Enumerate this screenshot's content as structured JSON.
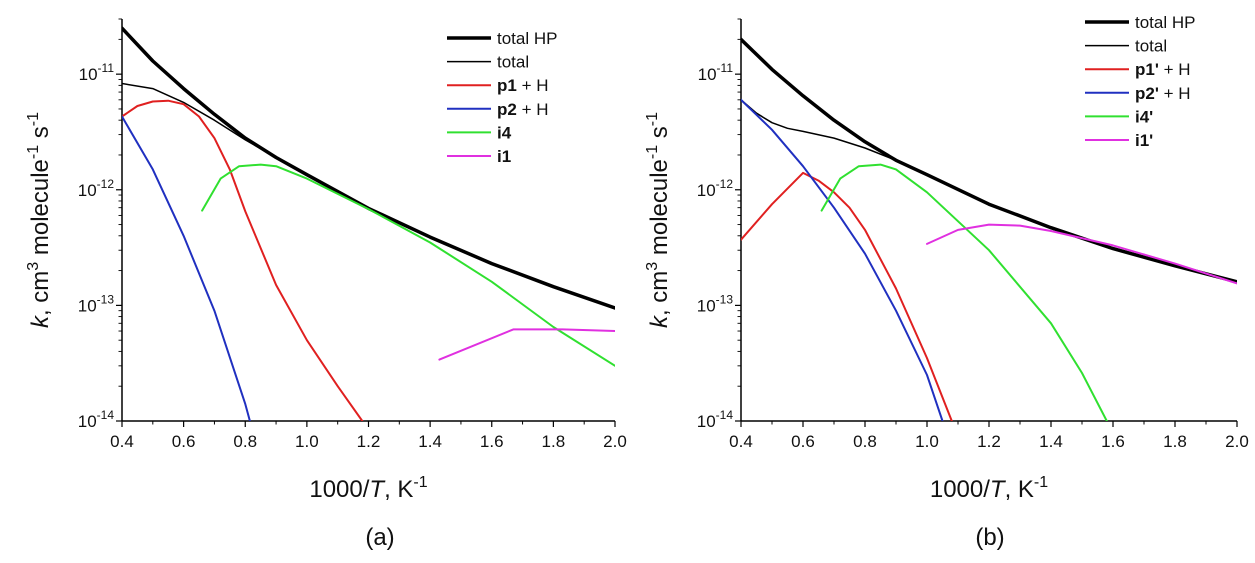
{
  "chart_data": [
    {
      "type": "line",
      "panel_label": "(a)",
      "xlabel": "1000/T, K-1",
      "ylabel": "k, cm3 molecule-1 s-1",
      "xlim": [
        0.4,
        2.0
      ],
      "ylim": [
        1e-14,
        3e-11
      ],
      "yscale": "log",
      "x_ticks": [
        "0.4",
        "0.6",
        "0.8",
        "1.0",
        "1.2",
        "1.4",
        "1.6",
        "1.8",
        "2.0"
      ],
      "y_ticks": [
        {
          "base": "10",
          "exp": "-11"
        },
        {
          "base": "10",
          "exp": "-12"
        },
        {
          "base": "10",
          "exp": "-13"
        },
        {
          "base": "10",
          "exp": "-14"
        }
      ],
      "legend_position": "top-right",
      "series": [
        {
          "name": "total HP",
          "color": "#000000",
          "width": 3.5,
          "x": [
            0.4,
            0.5,
            0.6,
            0.7,
            0.8,
            0.9,
            1.0,
            1.2,
            1.4,
            1.6,
            1.8,
            2.0
          ],
          "y": [
            2.5e-11,
            1.3e-11,
            7.5e-12,
            4.5e-12,
            2.8e-12,
            1.9e-12,
            1.35e-12,
            6.9e-13,
            3.9e-13,
            2.3e-13,
            1.45e-13,
            9.5e-14
          ]
        },
        {
          "name": "total",
          "color": "#000000",
          "width": 1.5,
          "x": [
            0.4,
            0.5,
            0.6,
            0.7,
            0.8,
            0.9,
            1.0,
            1.2
          ],
          "y": [
            8.3e-12,
            7.5e-12,
            5.7e-12,
            4e-12,
            2.7e-12,
            1.9e-12,
            1.35e-12,
            6.9e-13
          ]
        },
        {
          "name": "p1 + H",
          "color": "#e02020",
          "width": 2,
          "x": [
            0.4,
            0.45,
            0.5,
            0.55,
            0.6,
            0.65,
            0.7,
            0.75,
            0.8,
            0.9,
            1.0,
            1.1,
            1.18
          ],
          "y": [
            4.3e-12,
            5.3e-12,
            5.8e-12,
            5.9e-12,
            5.5e-12,
            4.3e-12,
            2.8e-12,
            1.5e-12,
            6.5e-13,
            1.5e-13,
            5e-14,
            2e-14,
            1e-14
          ]
        },
        {
          "name": "p2 + H",
          "color": "#2030c0",
          "width": 2,
          "x": [
            0.4,
            0.5,
            0.6,
            0.7,
            0.8,
            0.815
          ],
          "y": [
            4.3e-12,
            1.5e-12,
            4e-13,
            9e-14,
            1.4e-14,
            1e-14
          ]
        },
        {
          "name": "i4",
          "color": "#30e030",
          "width": 2,
          "x": [
            0.66,
            0.72,
            0.78,
            0.85,
            0.9,
            1.0,
            1.2,
            1.4,
            1.6,
            1.8,
            2.0
          ],
          "y": [
            6.6e-13,
            1.25e-12,
            1.6e-12,
            1.65e-12,
            1.6e-12,
            1.25e-12,
            6.8e-13,
            3.5e-13,
            1.6e-13,
            6.5e-14,
            3e-14
          ]
        },
        {
          "name": "i1",
          "color": "#e030e0",
          "width": 2,
          "x": [
            1.43,
            1.67,
            1.83,
            2.0
          ],
          "y": [
            3.4e-14,
            6.2e-14,
            6.2e-14,
            6e-14
          ]
        }
      ]
    },
    {
      "type": "line",
      "panel_label": "(b)",
      "xlabel": "1000/T, K-1",
      "ylabel": "k, cm3 molecule-1 s-1",
      "xlim": [
        0.4,
        2.0
      ],
      "ylim": [
        1e-14,
        3e-11
      ],
      "yscale": "log",
      "x_ticks": [
        "0.4",
        "0.6",
        "0.8",
        "1.0",
        "1.2",
        "1.4",
        "1.6",
        "1.8",
        "2.0"
      ],
      "y_ticks": [
        {
          "base": "10",
          "exp": "-11"
        },
        {
          "base": "10",
          "exp": "-12"
        },
        {
          "base": "10",
          "exp": "-13"
        },
        {
          "base": "10",
          "exp": "-14"
        }
      ],
      "legend_position": "top-right",
      "series": [
        {
          "name": "total HP",
          "color": "#000000",
          "width": 3.5,
          "x": [
            0.4,
            0.5,
            0.6,
            0.7,
            0.8,
            0.9,
            1.0,
            1.2,
            1.4,
            1.6,
            1.8,
            2.0
          ],
          "y": [
            2e-11,
            1.1e-11,
            6.5e-12,
            4e-12,
            2.6e-12,
            1.8e-12,
            1.35e-12,
            7.5e-13,
            4.7e-13,
            3.1e-13,
            2.2e-13,
            1.6e-13
          ]
        },
        {
          "name": "total",
          "color": "#000000",
          "width": 1.5,
          "x": [
            0.4,
            0.45,
            0.5,
            0.55,
            0.6,
            0.7,
            0.8,
            0.9,
            1.0
          ],
          "y": [
            6e-12,
            4.6e-12,
            3.8e-12,
            3.4e-12,
            3.2e-12,
            2.8e-12,
            2.3e-12,
            1.8e-12,
            1.35e-12
          ]
        },
        {
          "name": "p1' + H",
          "color": "#e02020",
          "width": 2,
          "x": [
            0.4,
            0.5,
            0.6,
            0.65,
            0.7,
            0.75,
            0.8,
            0.9,
            1.0,
            1.08
          ],
          "y": [
            3.7e-13,
            7.5e-13,
            1.4e-12,
            1.2e-12,
            9.5e-13,
            7e-13,
            4.5e-13,
            1.4e-13,
            3.5e-14,
            1e-14
          ]
        },
        {
          "name": "p2' + H",
          "color": "#2030c0",
          "width": 2,
          "x": [
            0.4,
            0.5,
            0.6,
            0.7,
            0.8,
            0.9,
            1.0,
            1.05
          ],
          "y": [
            6e-12,
            3.3e-12,
            1.6e-12,
            7e-13,
            2.8e-13,
            9e-14,
            2.5e-14,
            1e-14
          ]
        },
        {
          "name": "i4'",
          "color": "#30e030",
          "width": 2,
          "x": [
            0.66,
            0.72,
            0.78,
            0.85,
            0.9,
            1.0,
            1.2,
            1.4,
            1.5,
            1.58
          ],
          "y": [
            6.6e-13,
            1.25e-12,
            1.6e-12,
            1.65e-12,
            1.5e-12,
            9.5e-13,
            3e-13,
            7e-14,
            2.6e-14,
            1e-14
          ]
        },
        {
          "name": "i1'",
          "color": "#e030e0",
          "width": 2,
          "x": [
            1.0,
            1.1,
            1.2,
            1.3,
            1.4,
            1.6,
            1.8,
            2.0
          ],
          "y": [
            3.4e-13,
            4.5e-13,
            5e-13,
            4.9e-13,
            4.4e-13,
            3.3e-13,
            2.3e-13,
            1.55e-13
          ]
        }
      ]
    }
  ]
}
